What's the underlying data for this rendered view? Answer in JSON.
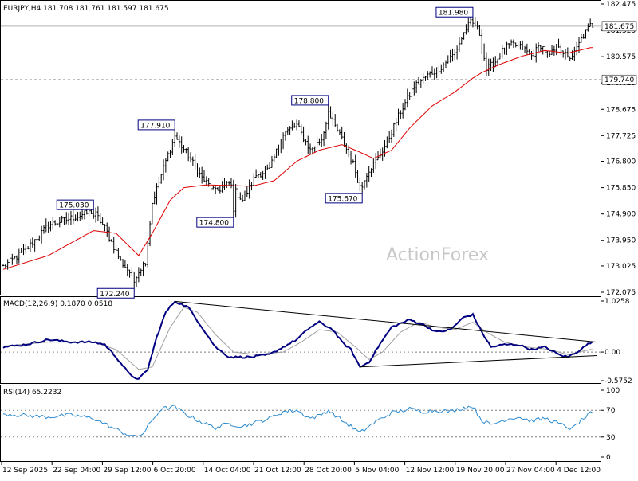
{
  "chart_data": {
    "type": "candlestick-ohlc",
    "title": "EURJPY,H4  181.708 181.761 181.597 181.675",
    "watermark": "ActionForex",
    "colors": {
      "bars": "#000000",
      "ma": "#dd0000",
      "macd": "#000080",
      "signal": "#a0a0a0",
      "rsi": "#2a8ad0",
      "levels": "#808080",
      "label_border": "#000080"
    },
    "price": {
      "ylim": [
        172.075,
        182.475
      ],
      "yticks": [
        "182.475",
        "181.525",
        "180.575",
        "179.625",
        "178.675",
        "177.725",
        "176.800",
        "175.850",
        "174.900",
        "173.950",
        "173.025",
        "172.075"
      ],
      "current_price": "181.675",
      "level": "179.740",
      "swing_labels": [
        {
          "text": "181.980",
          "i": 208,
          "v": 181.98
        },
        {
          "text": "178.800",
          "i": 144,
          "v": 178.8
        },
        {
          "text": "177.910",
          "i": 76,
          "v": 177.91
        },
        {
          "text": "175.670",
          "i": 159,
          "v": 175.67
        },
        {
          "text": "175.030",
          "i": 40,
          "v": 175.03
        },
        {
          "text": "174.800",
          "i": 102,
          "v": 174.8
        },
        {
          "text": "172.240",
          "i": 58,
          "v": 172.24
        }
      ],
      "close_anchors": [
        [
          0,
          173.0
        ],
        [
          10,
          173.6
        ],
        [
          20,
          174.5
        ],
        [
          40,
          175.0
        ],
        [
          45,
          174.4
        ],
        [
          52,
          173.2
        ],
        [
          58,
          172.6
        ],
        [
          63,
          173.2
        ],
        [
          66,
          175.3
        ],
        [
          72,
          176.8
        ],
        [
          76,
          177.7
        ],
        [
          82,
          177.0
        ],
        [
          88,
          176.2
        ],
        [
          94,
          175.7
        ],
        [
          100,
          176.0
        ],
        [
          106,
          175.4
        ],
        [
          112,
          176.3
        ],
        [
          118,
          176.5
        ],
        [
          124,
          177.8
        ],
        [
          130,
          178.1
        ],
        [
          136,
          177.2
        ],
        [
          141,
          177.6
        ],
        [
          144,
          178.5
        ],
        [
          150,
          177.6
        ],
        [
          155,
          176.7
        ],
        [
          158,
          175.9
        ],
        [
          162,
          176.5
        ],
        [
          166,
          176.9
        ],
        [
          170,
          177.5
        ],
        [
          176,
          178.6
        ],
        [
          182,
          179.5
        ],
        [
          188,
          179.9
        ],
        [
          194,
          180.2
        ],
        [
          200,
          180.7
        ],
        [
          205,
          181.6
        ],
        [
          208,
          181.9
        ],
        [
          211,
          181.4
        ],
        [
          214,
          180.1
        ],
        [
          218,
          180.4
        ],
        [
          222,
          180.9
        ],
        [
          226,
          181.0
        ],
        [
          230,
          180.9
        ],
        [
          234,
          180.6
        ],
        [
          238,
          181.0
        ],
        [
          242,
          180.6
        ],
        [
          246,
          181.0
        ],
        [
          250,
          180.5
        ],
        [
          253,
          180.7
        ],
        [
          256,
          181.2
        ],
        [
          260,
          181.7
        ]
      ],
      "ma_anchors": [
        [
          0,
          172.9
        ],
        [
          20,
          173.4
        ],
        [
          40,
          174.3
        ],
        [
          50,
          174.2
        ],
        [
          60,
          173.4
        ],
        [
          66,
          174.2
        ],
        [
          74,
          175.4
        ],
        [
          80,
          175.85
        ],
        [
          90,
          175.95
        ],
        [
          110,
          175.9
        ],
        [
          120,
          176.1
        ],
        [
          130,
          176.8
        ],
        [
          140,
          177.2
        ],
        [
          150,
          177.4
        ],
        [
          156,
          177.2
        ],
        [
          164,
          176.9
        ],
        [
          172,
          177.2
        ],
        [
          180,
          178.0
        ],
        [
          190,
          178.8
        ],
        [
          200,
          179.3
        ],
        [
          208,
          179.8
        ],
        [
          212,
          180.0
        ],
        [
          220,
          180.3
        ],
        [
          230,
          180.6
        ],
        [
          240,
          180.8
        ],
        [
          250,
          180.7
        ],
        [
          260,
          180.9
        ]
      ]
    },
    "macd": {
      "label": "MACD(12,26,9) 0.1870 0.0518",
      "ylim": [
        -0.5752,
        1.0258
      ],
      "yticks": [
        "1.0258",
        "0.00",
        "-0.5752"
      ],
      "macd_anchors": [
        [
          0,
          0.1
        ],
        [
          10,
          0.15
        ],
        [
          20,
          0.25
        ],
        [
          30,
          0.2
        ],
        [
          40,
          0.2
        ],
        [
          45,
          0.15
        ],
        [
          50,
          -0.1
        ],
        [
          56,
          -0.45
        ],
        [
          60,
          -0.55
        ],
        [
          64,
          -0.35
        ],
        [
          68,
          0.3
        ],
        [
          72,
          0.8
        ],
        [
          76,
          1.02
        ],
        [
          82,
          0.9
        ],
        [
          88,
          0.5
        ],
        [
          94,
          0.1
        ],
        [
          100,
          -0.1
        ],
        [
          110,
          -0.1
        ],
        [
          118,
          -0.05
        ],
        [
          124,
          0.1
        ],
        [
          130,
          0.25
        ],
        [
          136,
          0.5
        ],
        [
          140,
          0.6
        ],
        [
          146,
          0.45
        ],
        [
          150,
          0.2
        ],
        [
          154,
          0.05
        ],
        [
          158,
          -0.3
        ],
        [
          162,
          -0.2
        ],
        [
          166,
          0.1
        ],
        [
          172,
          0.5
        ],
        [
          180,
          0.65
        ],
        [
          186,
          0.55
        ],
        [
          192,
          0.4
        ],
        [
          198,
          0.45
        ],
        [
          204,
          0.7
        ],
        [
          208,
          0.75
        ],
        [
          212,
          0.4
        ],
        [
          216,
          0.1
        ],
        [
          222,
          0.15
        ],
        [
          228,
          0.15
        ],
        [
          234,
          0.05
        ],
        [
          240,
          0.1
        ],
        [
          246,
          -0.05
        ],
        [
          250,
          -0.1
        ],
        [
          254,
          0.0
        ],
        [
          260,
          0.19
        ]
      ],
      "signal_anchors": [
        [
          0,
          0.12
        ],
        [
          20,
          0.2
        ],
        [
          40,
          0.2
        ],
        [
          50,
          0.05
        ],
        [
          60,
          -0.35
        ],
        [
          66,
          -0.3
        ],
        [
          74,
          0.5
        ],
        [
          80,
          0.9
        ],
        [
          86,
          0.8
        ],
        [
          94,
          0.35
        ],
        [
          102,
          0.0
        ],
        [
          112,
          -0.05
        ],
        [
          124,
          0.0
        ],
        [
          132,
          0.2
        ],
        [
          140,
          0.45
        ],
        [
          148,
          0.4
        ],
        [
          156,
          0.1
        ],
        [
          162,
          -0.15
        ],
        [
          168,
          0.0
        ],
        [
          176,
          0.4
        ],
        [
          184,
          0.6
        ],
        [
          192,
          0.5
        ],
        [
          200,
          0.45
        ],
        [
          208,
          0.6
        ],
        [
          214,
          0.4
        ],
        [
          222,
          0.2
        ],
        [
          232,
          0.1
        ],
        [
          242,
          0.05
        ],
        [
          250,
          -0.05
        ],
        [
          260,
          0.05
        ]
      ],
      "trendlines": [
        {
          "from": [
            76,
            1.02
          ],
          "to": [
            263,
            0.2
          ]
        },
        {
          "from": [
            158,
            -0.3
          ],
          "to": [
            263,
            -0.07
          ]
        }
      ]
    },
    "rsi": {
      "label": "RSI(14) 65.2232",
      "ylim": [
        0,
        100
      ],
      "yticks": [
        "100",
        "70",
        "30",
        "0"
      ],
      "levels": [
        70,
        30
      ],
      "rsi_anchors": [
        [
          0,
          65
        ],
        [
          10,
          62
        ],
        [
          20,
          60
        ],
        [
          30,
          63
        ],
        [
          40,
          58
        ],
        [
          46,
          48
        ],
        [
          52,
          38
        ],
        [
          58,
          30
        ],
        [
          62,
          35
        ],
        [
          66,
          55
        ],
        [
          70,
          72
        ],
        [
          76,
          75
        ],
        [
          82,
          62
        ],
        [
          88,
          52
        ],
        [
          94,
          44
        ],
        [
          100,
          50
        ],
        [
          106,
          46
        ],
        [
          112,
          52
        ],
        [
          118,
          58
        ],
        [
          124,
          68
        ],
        [
          130,
          70
        ],
        [
          136,
          58
        ],
        [
          140,
          62
        ],
        [
          144,
          70
        ],
        [
          150,
          55
        ],
        [
          154,
          46
        ],
        [
          158,
          36
        ],
        [
          162,
          46
        ],
        [
          166,
          55
        ],
        [
          172,
          66
        ],
        [
          180,
          72
        ],
        [
          186,
          68
        ],
        [
          192,
          70
        ],
        [
          198,
          68
        ],
        [
          204,
          74
        ],
        [
          208,
          76
        ],
        [
          212,
          55
        ],
        [
          216,
          48
        ],
        [
          222,
          56
        ],
        [
          228,
          60
        ],
        [
          234,
          54
        ],
        [
          240,
          58
        ],
        [
          246,
          50
        ],
        [
          252,
          42
        ],
        [
          256,
          55
        ],
        [
          260,
          65
        ]
      ]
    },
    "x_labels": [
      "12 Sep 2025",
      "22 Sep 04:00",
      "29 Sep 12:00",
      "6 Oct 20:00",
      "14 Oct 04:00",
      "21 Oct 12:00",
      "28 Oct 20:00",
      "5 Nov 04:00",
      "12 Nov 12:00",
      "19 Nov 20:00",
      "27 Nov 04:00",
      "4 Dec 12:00"
    ],
    "bars_count": 262
  }
}
